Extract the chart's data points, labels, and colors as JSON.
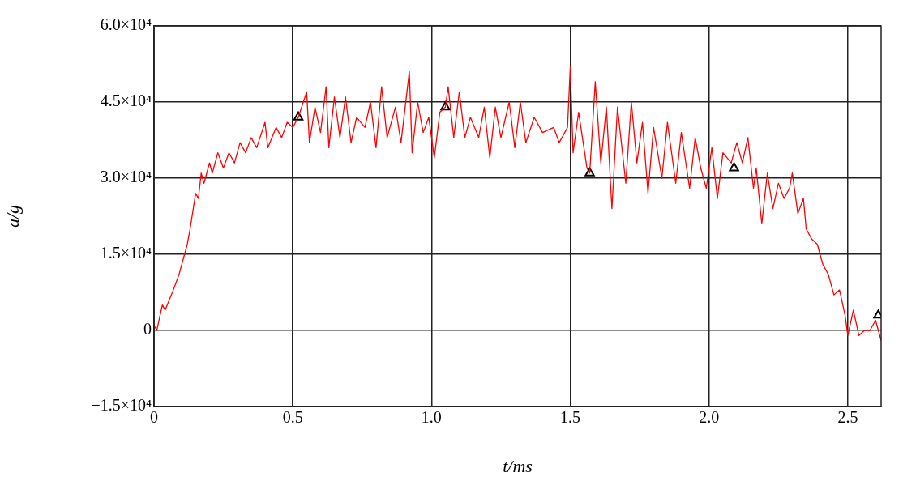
{
  "chart_data": {
    "type": "line",
    "xlabel": "t/ms",
    "ylabel": "a/g",
    "xlim": [
      0,
      2.62
    ],
    "xticks": [
      0,
      0.5,
      {
        "value": 1,
        "label": "1.0"
      },
      1.5,
      {
        "value": 2,
        "label": "2.0"
      },
      2.5
    ],
    "ylim": [
      -15000,
      60000
    ],
    "yticks": [
      {
        "value": -15000,
        "label": "−1.5×10⁴"
      },
      0,
      {
        "value": 15000,
        "label": "1.5×10⁴"
      },
      {
        "value": 30000,
        "label": "3.0×10⁴"
      },
      {
        "value": 45000,
        "label": "4.5×10⁴"
      },
      {
        "value": 60000,
        "label": "6.0×10⁴"
      }
    ],
    "grid": true,
    "marker": "none",
    "line_style": "solid",
    "series": [
      {
        "color": "#ff0000",
        "x": [
          0,
          0.01,
          0.03,
          0.04,
          0.07,
          0.09,
          0.12,
          0.13,
          0.15,
          0.16,
          0.17,
          0.18,
          0.2,
          0.21,
          0.23,
          0.25,
          0.27,
          0.29,
          0.31,
          0.33,
          0.35,
          0.37,
          0.4,
          0.41,
          0.44,
          0.46,
          0.48,
          0.5,
          0.52,
          0.55,
          0.56,
          0.58,
          0.6,
          0.62,
          0.63,
          0.65,
          0.67,
          0.69,
          0.71,
          0.73,
          0.76,
          0.78,
          0.8,
          0.82,
          0.84,
          0.87,
          0.89,
          0.92,
          0.93,
          0.95,
          0.97,
          0.99,
          1.01,
          1.03,
          1.05,
          1.06,
          1.08,
          1.1,
          1.12,
          1.14,
          1.17,
          1.19,
          1.21,
          1.23,
          1.25,
          1.28,
          1.3,
          1.32,
          1.34,
          1.37,
          1.4,
          1.44,
          1.46,
          1.49,
          1.5,
          1.51,
          1.53,
          1.56,
          1.57,
          1.59,
          1.61,
          1.63,
          1.65,
          1.67,
          1.7,
          1.72,
          1.74,
          1.76,
          1.78,
          1.8,
          1.83,
          1.85,
          1.88,
          1.9,
          1.93,
          1.95,
          1.97,
          1.99,
          2.01,
          2.03,
          2.05,
          2.08,
          2.1,
          2.12,
          2.14,
          2.16,
          2.17,
          2.19,
          2.21,
          2.23,
          2.25,
          2.27,
          2.29,
          2.3,
          2.32,
          2.34,
          2.35,
          2.37,
          2.39,
          2.41,
          2.43,
          2.45,
          2.47,
          2.49,
          2.5,
          2.52,
          2.54,
          2.56,
          2.58,
          2.6,
          2.62
        ],
        "values": [
          1000,
          0,
          5000,
          4000,
          8000,
          11000,
          17000,
          20000,
          27000,
          26000,
          31000,
          29000,
          33000,
          31000,
          35000,
          32000,
          35000,
          33000,
          37000,
          35000,
          38000,
          36000,
          41000,
          36000,
          40000,
          38000,
          41000,
          40000,
          42000,
          47000,
          37000,
          44000,
          39000,
          48000,
          36000,
          46000,
          38000,
          46000,
          37000,
          42000,
          40000,
          45000,
          36000,
          48000,
          38000,
          44000,
          37000,
          51000,
          35000,
          45000,
          39000,
          42000,
          34000,
          43000,
          44000,
          48000,
          38000,
          47000,
          38000,
          42000,
          38000,
          44000,
          34000,
          44000,
          38000,
          45000,
          36000,
          45000,
          37000,
          42000,
          39000,
          40000,
          37000,
          40000,
          52000,
          35000,
          43000,
          32000,
          31000,
          49000,
          33000,
          44000,
          24000,
          44000,
          29000,
          45000,
          33000,
          41000,
          27000,
          40000,
          30000,
          41000,
          29000,
          39000,
          28000,
          38000,
          32000,
          28000,
          36000,
          26000,
          35000,
          33000,
          37000,
          33000,
          38000,
          28000,
          32000,
          21000,
          31000,
          24000,
          29000,
          26000,
          28000,
          31000,
          23000,
          26000,
          20000,
          18000,
          17000,
          13000,
          11000,
          7000,
          8000,
          3000,
          -1000,
          4000,
          -1000,
          0,
          0,
          2000,
          -2000
        ]
      },
      {
        "type": "scatter",
        "color": "#000000",
        "marker": "triangle",
        "x": [
          0.52,
          1.05,
          1.57,
          2.09,
          2.61
        ],
        "values": [
          42000,
          44000,
          31000,
          32000,
          3000
        ]
      }
    ]
  }
}
